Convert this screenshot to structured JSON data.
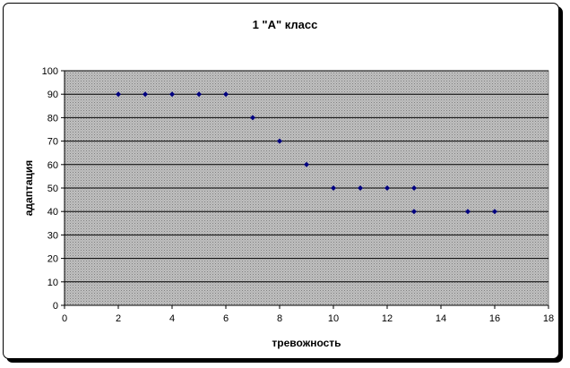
{
  "chart_data": {
    "type": "scatter",
    "title": "1 \"А\" класс",
    "xlabel": "тревожность",
    "ylabel": "адаптация",
    "xlim": [
      0,
      18
    ],
    "ylim": [
      0,
      100
    ],
    "x_ticks": [
      0,
      2,
      4,
      6,
      8,
      10,
      12,
      14,
      16,
      18
    ],
    "y_ticks": [
      0,
      10,
      20,
      30,
      40,
      50,
      60,
      70,
      80,
      90,
      100
    ],
    "grid": true,
    "legend": "none",
    "colors": {
      "marker": "#000080",
      "plot_background": "#c0c0c0",
      "grid": "#000000"
    },
    "points": [
      {
        "x": 2,
        "y": 90
      },
      {
        "x": 3,
        "y": 90
      },
      {
        "x": 4,
        "y": 90
      },
      {
        "x": 5,
        "y": 90
      },
      {
        "x": 6,
        "y": 90
      },
      {
        "x": 7,
        "y": 80
      },
      {
        "x": 8,
        "y": 70
      },
      {
        "x": 9,
        "y": 60
      },
      {
        "x": 10,
        "y": 50
      },
      {
        "x": 11,
        "y": 50
      },
      {
        "x": 12,
        "y": 50
      },
      {
        "x": 13,
        "y": 50
      },
      {
        "x": 13,
        "y": 40
      },
      {
        "x": 15,
        "y": 40
      },
      {
        "x": 16,
        "y": 40
      }
    ]
  }
}
